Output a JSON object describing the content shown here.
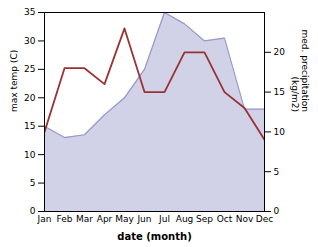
{
  "chart_data": {
    "type": "line",
    "categories": [
      "Jan",
      "Feb",
      "Mar",
      "Apr",
      "May",
      "Jun",
      "Jul",
      "Aug",
      "Sep",
      "Oct",
      "Nov",
      "Dec"
    ],
    "series": [
      {
        "type": "area",
        "color": "#9898cc",
        "values": [
          15.0,
          13.0,
          13.5,
          17.0,
          20.0,
          25.0,
          35.0,
          33.0,
          30.0,
          30.5,
          18.0,
          18.0
        ]
      },
      {
        "type": "line",
        "axis": "y2",
        "color": "#993333",
        "values": [
          10.0,
          18.0,
          18.0,
          16.0,
          23.0,
          15.0,
          15.0,
          20.0,
          20.0,
          15.0,
          13.0,
          9.0
        ]
      }
    ],
    "xlabel": "date (month)",
    "ylabel": "max temp (C)",
    "y2label": "med. precipitation\n(kg/m2)",
    "ylim": [
      0,
      35
    ],
    "yticks": [
      0,
      5,
      10,
      15,
      20,
      25,
      30,
      35
    ],
    "y2lim": [
      0,
      25
    ],
    "y2ticks": [
      0,
      5,
      10,
      15,
      20
    ],
    "grid": false
  }
}
